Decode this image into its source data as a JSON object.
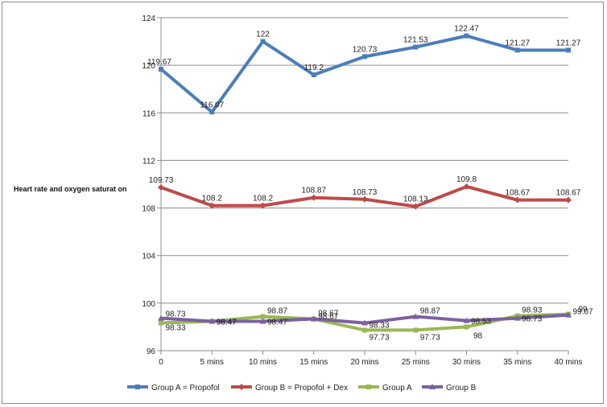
{
  "chart_data": {
    "type": "line",
    "title": "",
    "xlabel": "",
    "ylabel": "Heart rate and oxygen saturat on",
    "categories": [
      "0",
      "5 mins",
      "10 mins",
      "15 mins",
      "20 mins",
      "25 mins",
      "30 mins",
      "35 mins",
      "40 mins"
    ],
    "ylim": [
      96,
      124
    ],
    "yticks": [
      96,
      100,
      104,
      108,
      112,
      116,
      120,
      124
    ],
    "grid": true,
    "legend": "bottom",
    "series": [
      {
        "name": "Group A = Propofol",
        "color": "#4a7ebb",
        "values": [
          119.67,
          116.07,
          122,
          119.2,
          120.73,
          121.53,
          122.47,
          121.27,
          121.27
        ],
        "labels": [
          "119.67",
          "116.07",
          "122",
          "119.2",
          "120.73",
          "121.53",
          "122.47",
          "121.27",
          "121.27"
        ]
      },
      {
        "name": "Group B = Propofol + Dex",
        "color": "#be4b48",
        "values": [
          109.73,
          108.2,
          108.2,
          108.87,
          108.73,
          108.13,
          109.8,
          108.67,
          108.67
        ],
        "labels": [
          "109.73",
          "108.2",
          "108.2",
          "108.87",
          "108.73",
          "108.13",
          "109.8",
          "108.67",
          "108.67"
        ]
      },
      {
        "name": "Group A",
        "color": "#98b954",
        "values": [
          98.33,
          98.47,
          98.87,
          98.67,
          97.73,
          97.73,
          98,
          98.93,
          99.07
        ],
        "labels": [
          "98.33",
          "98.47",
          "98.87",
          "98.67",
          "97.73",
          "97.73",
          "98",
          "98.93",
          "99.07"
        ]
      },
      {
        "name": "Group B",
        "color": "#7d60a0",
        "values": [
          98.73,
          98.47,
          98.47,
          98.67,
          98.33,
          98.87,
          98.53,
          98.73,
          99
        ],
        "labels": [
          "98.73",
          "98.47",
          "98.47",
          "98.67",
          "98.33",
          "98.87",
          "98.53",
          "98.73",
          "99"
        ]
      }
    ]
  }
}
